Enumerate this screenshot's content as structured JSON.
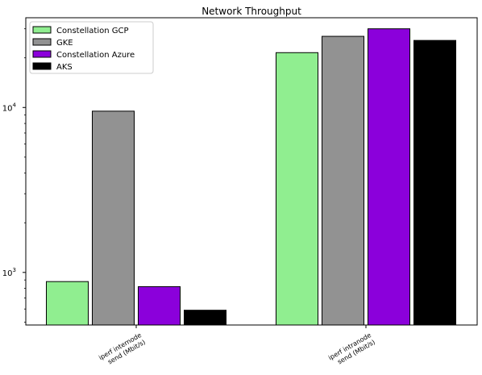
{
  "chart_data": {
    "type": "bar",
    "title": "Network Throughput",
    "xlabel": "",
    "ylabel": "",
    "yscale": "log",
    "ylim": [
      480,
      35000
    ],
    "yticks": [
      {
        "value": 1000,
        "label": "10",
        "exp": "3"
      },
      {
        "value": 10000,
        "label": "10",
        "exp": "4"
      }
    ],
    "categories": [
      [
        "iperf internode",
        "send (Mbit/s)"
      ],
      [
        "iperf intranode",
        "send (Mbit/s)"
      ]
    ],
    "series": [
      {
        "name": "Constellation GCP",
        "color": "#90ee90",
        "values": [
          880,
          21500
        ]
      },
      {
        "name": "GKE",
        "color": "#929292",
        "values": [
          9500,
          27000
        ]
      },
      {
        "name": "Constellation Azure",
        "color": "#8b00db",
        "values": [
          820,
          30000
        ]
      },
      {
        "name": "AKS",
        "color": "#000000",
        "values": [
          590,
          25500
        ]
      }
    ],
    "legend_position": "top-left",
    "grid": false
  }
}
